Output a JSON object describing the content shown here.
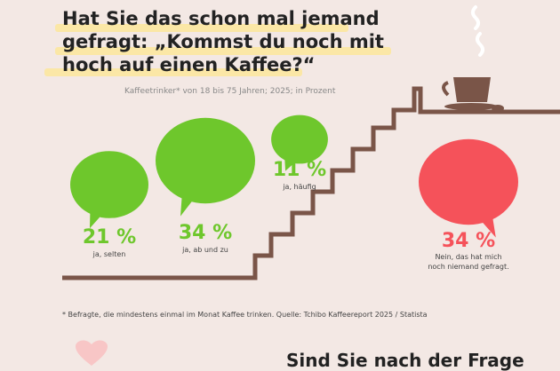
{
  "title": "Hat Sie das schon mal jemand gefragt: „Kommst du noch mit hoch auf einen Kaffee?“",
  "subtitle": "Kaffeetrinker* von 18 bis 75 Jahren; 2025; in Prozent",
  "footnote": "* Befragte, die mindestens einmal im Monat Kaffee trinken. Quelle: Tchibo Kaffeereport 2025 / Statista",
  "bottom_heading": "Sind Sie nach der Frage",
  "colors": {
    "yes": "#6ec72c",
    "no": "#f5525a",
    "stairs": "#7a5548",
    "highlight": "#fbe7a6",
    "heart": "#f8c6c6"
  },
  "icons": [
    "speech-bubble-icon",
    "coffee-cup-icon",
    "steam-icon",
    "coffee-bean-icon",
    "heart-icon"
  ],
  "chart_data": {
    "type": "bar",
    "unit": "%",
    "categories": [
      "ja, selten",
      "ja, ab und zu",
      "ja, häufig",
      "Nein, das hat mich noch niemand gefragt."
    ],
    "values": [
      21,
      34,
      11,
      34
    ],
    "value_labels": [
      "21 %",
      "34 %",
      "11 %",
      "34 %"
    ],
    "label_lines": [
      [
        "ja, selten"
      ],
      [
        "ja, ab und zu"
      ],
      [
        "ja, häufig"
      ],
      [
        "Nein, das hat mich",
        "noch niemand gefragt."
      ]
    ]
  }
}
